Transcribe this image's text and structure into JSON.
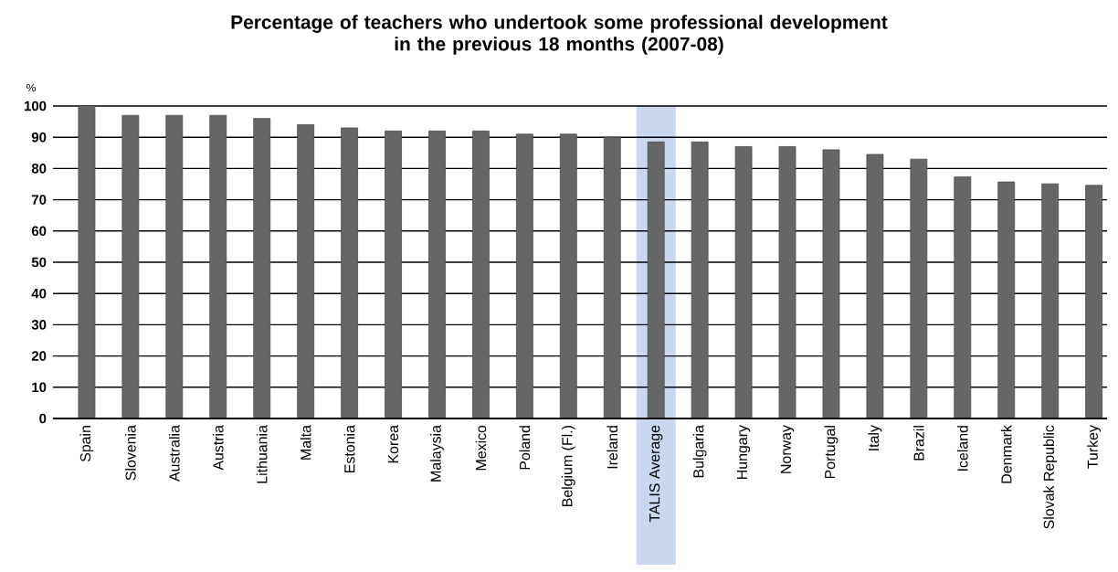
{
  "chart_data": {
    "type": "bar",
    "title": "Percentage of teachers who undertook some professional development\nin the previous 18 months  (2007-08)",
    "ylabel": "%",
    "categories": [
      "Spain",
      "Slovenia",
      "Australia",
      "Austria",
      "Lithuania",
      "Malta",
      "Estonia",
      "Korea",
      "Malaysia",
      "Mexico",
      "Poland",
      "Belgium (Fl.)",
      "Ireland",
      "TALIS Average",
      "Bulgaria",
      "Hungary",
      "Norway",
      "Portugal",
      "Italy",
      "Brazil",
      "Iceland",
      "Denmark",
      "Slovak Republic",
      "Turkey"
    ],
    "values": [
      100,
      97,
      97,
      97,
      96,
      94,
      93,
      92,
      92,
      92,
      91,
      91,
      90,
      88.5,
      88.5,
      87,
      87,
      86,
      84.5,
      83,
      77.3,
      75.7,
      75.1,
      74.6
    ],
    "color": "#666666",
    "ylim": [
      0,
      100
    ],
    "yticks": [
      0,
      10,
      20,
      30,
      40,
      50,
      60,
      70,
      80,
      90,
      100
    ],
    "grid": "y",
    "bands": [
      {
        "axis": "x",
        "from": "TALIS Average",
        "to": "TALIS Average",
        "color": "#c9d8ef"
      }
    ]
  }
}
